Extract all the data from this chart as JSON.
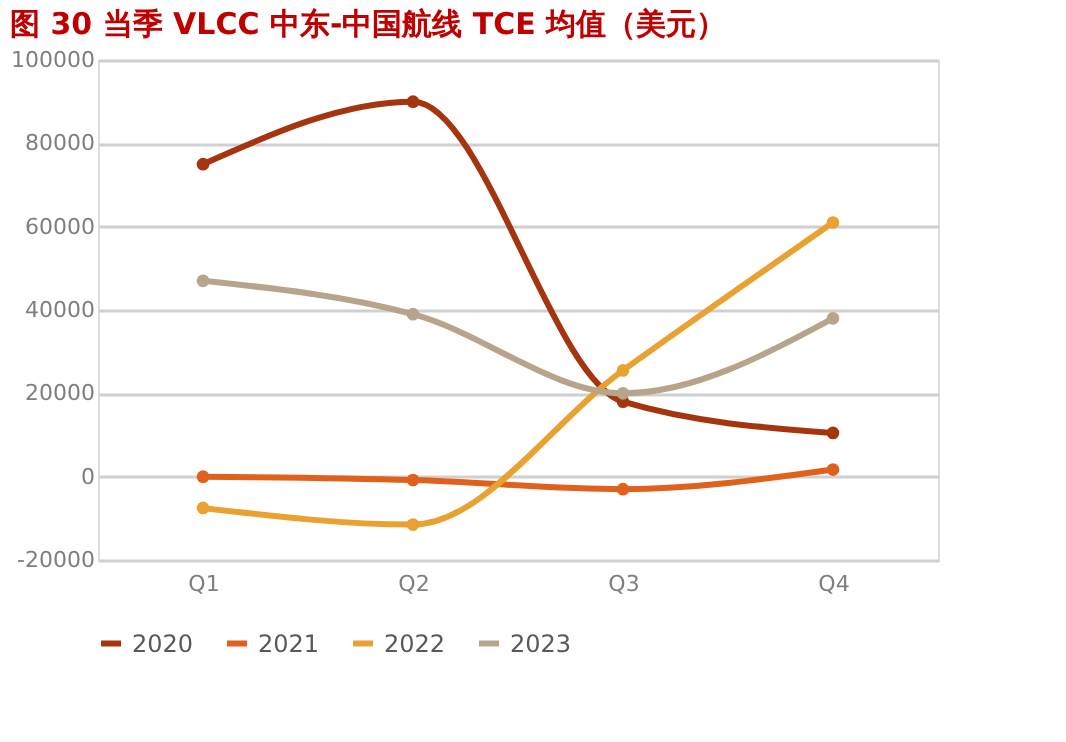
{
  "chart_data": {
    "type": "line",
    "title": "图 30   当季 VLCC 中东-中国航线 TCE 均值（美元）",
    "categories": [
      "Q1",
      "Q2",
      "Q3",
      "Q4"
    ],
    "series": [
      {
        "name": "2020",
        "color": "#a5350f",
        "values": [
          75000,
          90000,
          18000,
          10500
        ]
      },
      {
        "name": "2021",
        "color": "#e0611c",
        "values": [
          0,
          -800,
          -3000,
          1700
        ]
      },
      {
        "name": "2022",
        "color": "#e9a232",
        "values": [
          -7500,
          -11500,
          25500,
          61000
        ]
      },
      {
        "name": "2023",
        "color": "#b8a48a",
        "values": [
          47000,
          39000,
          20000,
          38000
        ]
      }
    ],
    "ylim": [
      -20000,
      100000
    ],
    "yticks": [
      -20000,
      0,
      20000,
      40000,
      60000,
      80000,
      100000
    ],
    "grid": "y",
    "legend": "bottom",
    "marker": "circle",
    "line_style": "solid"
  }
}
